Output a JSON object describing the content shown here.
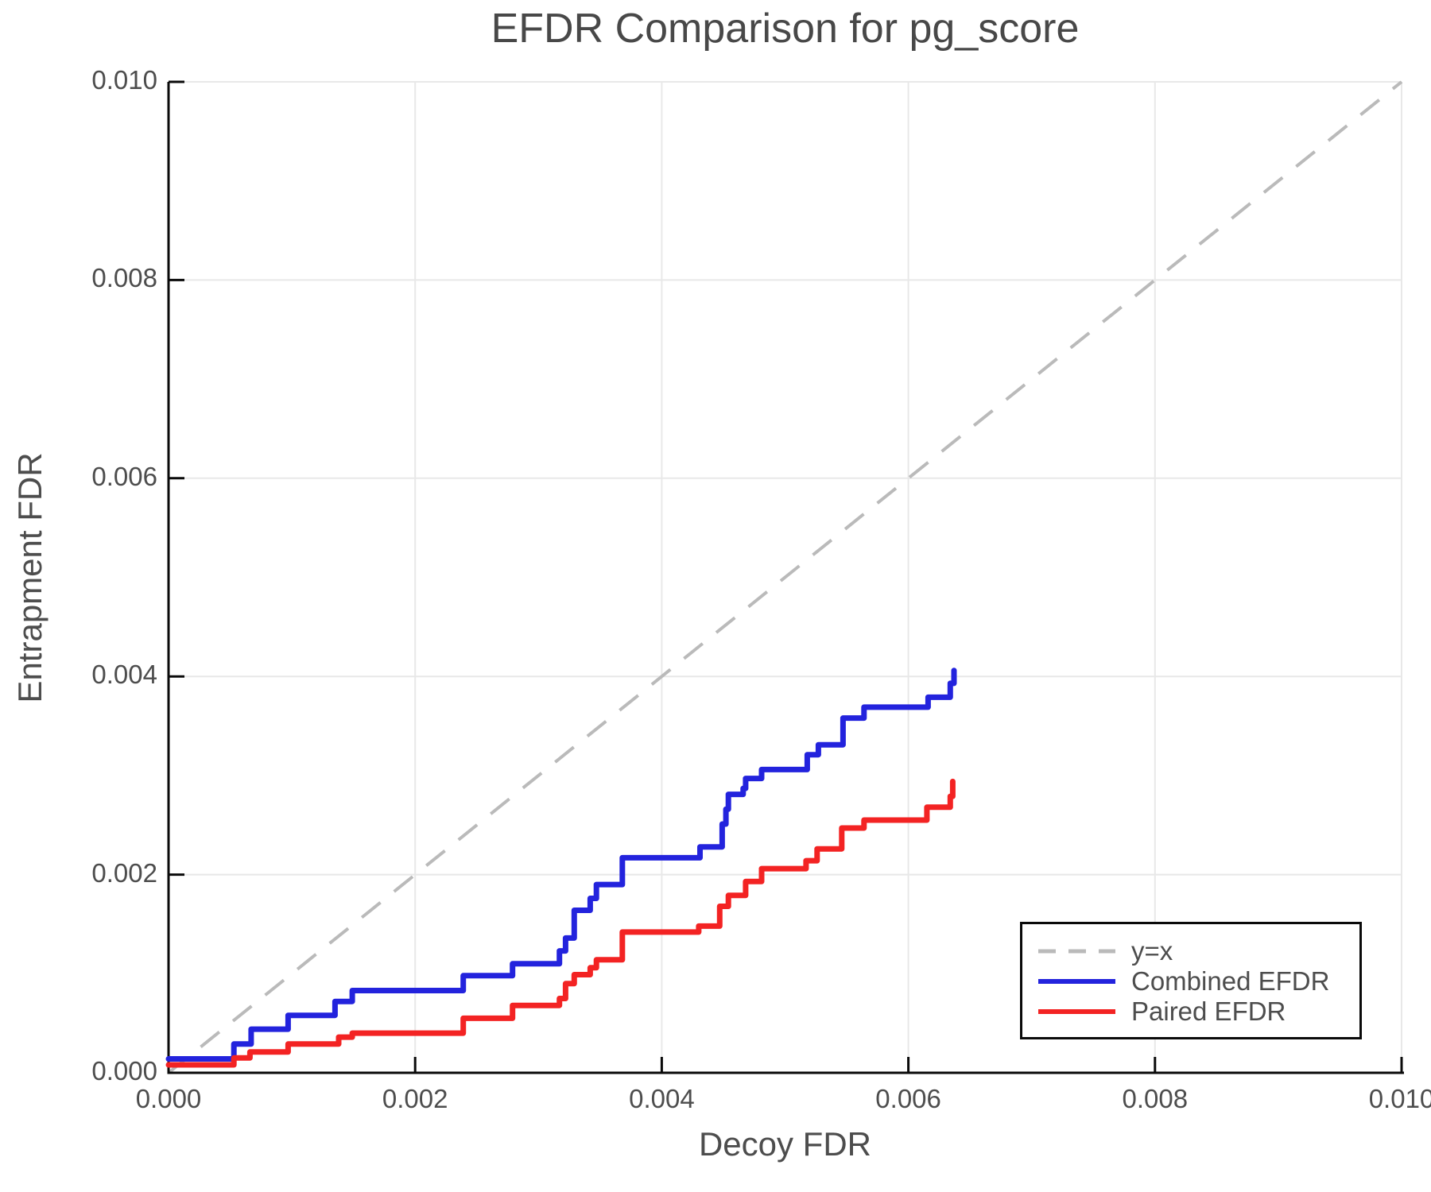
{
  "title": "EFDR Comparison for pg_score",
  "colors": {
    "combined_efdr": "#2323dd",
    "paired_efdr": "#f32323",
    "identity_line": "#bababa",
    "grid": "#e8e8e8",
    "axis": "#0a0a0a",
    "text": "#4d4d4d",
    "background": "#ffffff"
  },
  "chart_data": {
    "type": "line",
    "title": "EFDR Comparison for pg_score",
    "xlabel": "Decoy FDR",
    "ylabel": "Entrapment FDR",
    "xlim": [
      0.0,
      0.01
    ],
    "ylim": [
      0.0,
      0.01
    ],
    "x_ticks": [
      0.0,
      0.002,
      0.004,
      0.006,
      0.008,
      0.01
    ],
    "x_tick_labels": [
      "0.000",
      "0.002",
      "0.004",
      "0.006",
      "0.008",
      "0.010"
    ],
    "y_ticks": [
      0.0,
      0.002,
      0.004,
      0.006,
      0.008,
      0.01
    ],
    "y_tick_labels": [
      "0.000",
      "0.002",
      "0.004",
      "0.006",
      "0.008",
      "0.010"
    ],
    "grid": true,
    "legend_position": "lower right",
    "series": [
      {
        "name": "y=x",
        "style": "dashed",
        "step": false,
        "color": "#bababa",
        "points": [
          [
            0.0,
            0.0
          ],
          [
            0.01,
            0.01
          ]
        ]
      },
      {
        "name": "Combined EFDR",
        "style": "solid",
        "step": true,
        "color": "#2323dd",
        "points": [
          [
            0.0,
            0.00014
          ],
          [
            0.00053,
            0.00029
          ],
          [
            0.00067,
            0.00044
          ],
          [
            0.00097,
            0.00058
          ],
          [
            0.00135,
            0.00072
          ],
          [
            0.00149,
            0.00083
          ],
          [
            0.00239,
            0.00098
          ],
          [
            0.00279,
            0.0011
          ],
          [
            0.00317,
            0.00123
          ],
          [
            0.00322,
            0.00136
          ],
          [
            0.00329,
            0.00164
          ],
          [
            0.00342,
            0.00176
          ],
          [
            0.00347,
            0.0019
          ],
          [
            0.00368,
            0.00217
          ],
          [
            0.00431,
            0.00228
          ],
          [
            0.00449,
            0.00251
          ],
          [
            0.00452,
            0.00266
          ],
          [
            0.00454,
            0.00281
          ],
          [
            0.00466,
            0.00287
          ],
          [
            0.00468,
            0.00297
          ],
          [
            0.00481,
            0.00306
          ],
          [
            0.00518,
            0.00321
          ],
          [
            0.00527,
            0.00331
          ],
          [
            0.00547,
            0.00358
          ],
          [
            0.00564,
            0.00369
          ],
          [
            0.00616,
            0.00379
          ],
          [
            0.00634,
            0.00393
          ],
          [
            0.00637,
            0.00406
          ]
        ]
      },
      {
        "name": "Paired EFDR",
        "style": "solid",
        "step": true,
        "color": "#f32323",
        "points": [
          [
            0.0,
            8e-05
          ],
          [
            0.00053,
            0.00015
          ],
          [
            0.00066,
            0.00021
          ],
          [
            0.00097,
            0.00029
          ],
          [
            0.00138,
            0.00036
          ],
          [
            0.00149,
            0.0004
          ],
          [
            0.00239,
            0.00055
          ],
          [
            0.00279,
            0.00068
          ],
          [
            0.00317,
            0.00075
          ],
          [
            0.00322,
            0.0009
          ],
          [
            0.00329,
            0.00099
          ],
          [
            0.00342,
            0.00106
          ],
          [
            0.00347,
            0.00114
          ],
          [
            0.00368,
            0.00142
          ],
          [
            0.0043,
            0.00148
          ],
          [
            0.00447,
            0.00168
          ],
          [
            0.00454,
            0.00179
          ],
          [
            0.00468,
            0.00193
          ],
          [
            0.00481,
            0.00206
          ],
          [
            0.00517,
            0.00214
          ],
          [
            0.00526,
            0.00226
          ],
          [
            0.00546,
            0.00247
          ],
          [
            0.00564,
            0.00255
          ],
          [
            0.00615,
            0.00268
          ],
          [
            0.00634,
            0.00279
          ],
          [
            0.00636,
            0.00294
          ]
        ]
      }
    ]
  },
  "legend": {
    "items": [
      {
        "label": "y=x"
      },
      {
        "label": "Combined EFDR"
      },
      {
        "label": "Paired EFDR"
      }
    ]
  }
}
